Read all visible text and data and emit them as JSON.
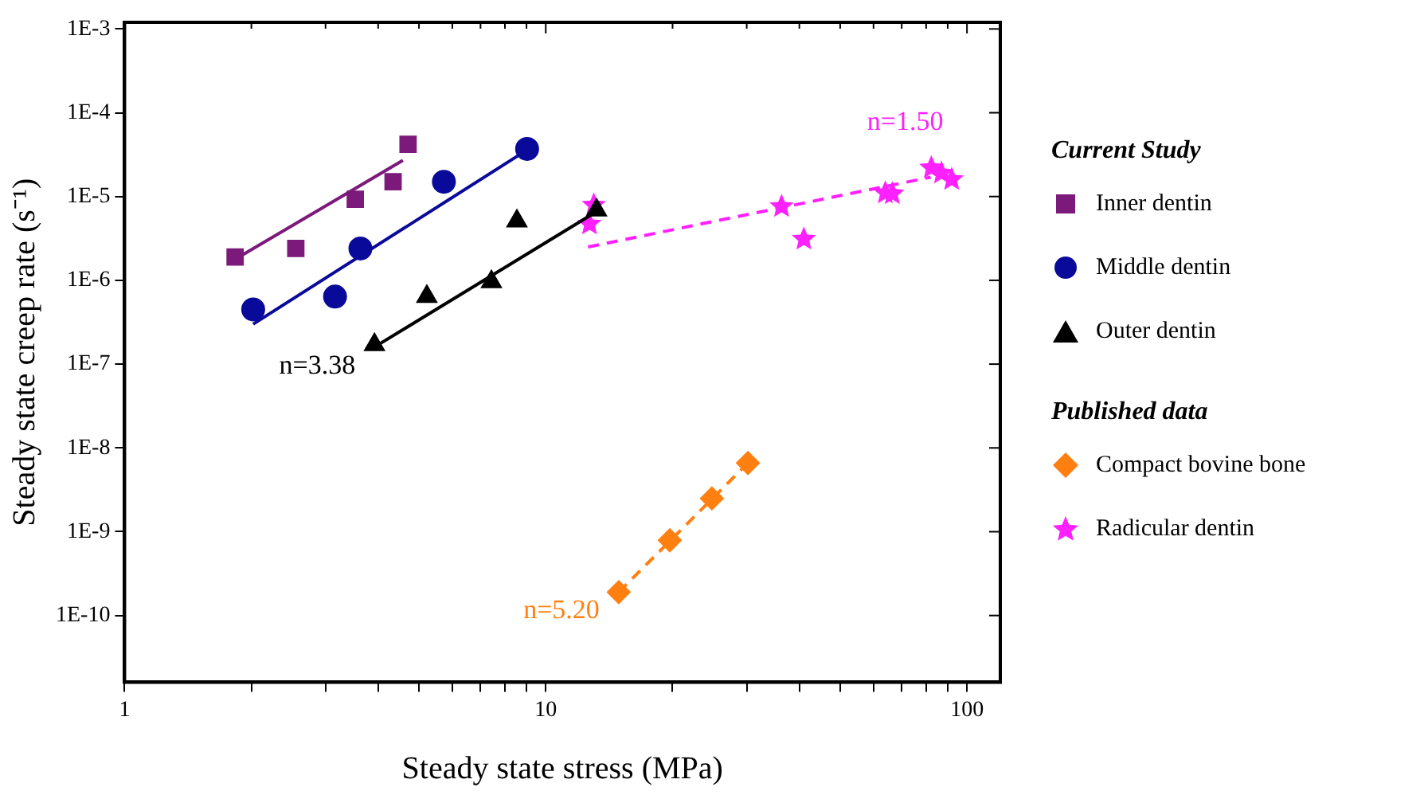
{
  "chart_data": {
    "type": "scatter",
    "xlabel": "Steady state stress (MPa)",
    "ylabel": "Steady state creep rate (s⁻¹)",
    "log": "xy",
    "xlim": [
      1,
      120
    ],
    "ylim": [
      1.6e-11,
      0.0012
    ],
    "xticks": [
      1,
      {
        "value": 2,
        "label": null
      },
      {
        "value": 3,
        "label": null
      },
      {
        "value": 4,
        "label": null
      },
      {
        "value": 5,
        "label": null
      },
      {
        "value": 6,
        "label": null
      },
      {
        "value": 7,
        "label": null
      },
      {
        "value": 8,
        "label": null
      },
      {
        "value": 9,
        "label": null
      },
      10,
      {
        "value": 20,
        "label": null
      },
      {
        "value": 30,
        "label": null
      },
      {
        "value": 40,
        "label": null
      },
      {
        "value": 50,
        "label": null
      },
      {
        "value": 60,
        "label": null
      },
      {
        "value": 70,
        "label": null
      },
      {
        "value": 80,
        "label": null
      },
      {
        "value": 90,
        "label": null
      },
      100
    ],
    "yticks": [
      {
        "value": 1e-10,
        "label": "1E-10"
      },
      {
        "value": 1e-09,
        "label": "1E-9"
      },
      {
        "value": 1e-08,
        "label": "1E-8"
      },
      {
        "value": 1e-07,
        "label": "1E-7"
      },
      {
        "value": 1e-06,
        "label": "1E-6"
      },
      {
        "value": 1e-05,
        "label": "1E-5"
      },
      {
        "value": 0.0001,
        "label": "1E-4"
      },
      {
        "value": 0.001,
        "label": "1E-3"
      }
    ],
    "grid": false,
    "legend": "right",
    "legend_title": "Current Study",
    "series": [
      {
        "name": "Inner dentin",
        "color": "#7b1a7b",
        "marker": "square",
        "x": [
          1.83,
          2.55,
          3.53,
          4.34,
          4.71
        ],
        "values": [
          1.9e-06,
          2.4e-06,
          9.3e-06,
          1.5e-05,
          4.2e-05
        ]
      },
      {
        "name": "Middle dentin",
        "color": "#0a0a9a",
        "marker": "circle",
        "x": [
          2.02,
          3.16,
          3.63,
          5.73,
          9.03
        ],
        "values": [
          4.5e-07,
          6.4e-07,
          2.4e-06,
          1.5e-05,
          3.7e-05
        ]
      },
      {
        "name": "Outer dentin",
        "color": "#000000",
        "marker": "triangle",
        "x": [
          3.92,
          5.22,
          7.43,
          8.54,
          13.2
        ],
        "values": [
          1.7e-07,
          6.4e-07,
          9.6e-07,
          5.1e-06,
          6.9e-06
        ]
      },
      {
        "name": "Compact bovine bone",
        "color": "#ff8010",
        "marker": "diamond",
        "x": [
          14.9,
          19.7,
          24.8,
          30.2
        ],
        "values": [
          1.9e-10,
          7.9e-10,
          2.5e-09,
          6.6e-09
        ]
      },
      {
        "name": "Radicular dentin",
        "color": "#ff20ff",
        "marker": "star",
        "x": [
          13.0,
          12.7,
          36.3,
          41.0,
          64.0,
          66.5,
          82.3,
          87.0,
          92.0
        ],
        "values": [
          7.9e-06,
          4.7e-06,
          7.6e-06,
          3.1e-06,
          1.1e-05,
          1.08e-05,
          2.2e-05,
          1.9e-05,
          1.6e-05
        ]
      },
      {
        "type": "line",
        "color": "#7b1a7b",
        "marker": "none",
        "line_style": "solid",
        "x": [
          1.87,
          4.58
        ],
        "values": [
          1.9e-06,
          2.7e-05
        ]
      },
      {
        "type": "line",
        "color": "#0a0a9a",
        "marker": "none",
        "line_style": "solid",
        "x": [
          2.02,
          8.7
        ],
        "values": [
          3e-07,
          3.2e-05
        ]
      },
      {
        "type": "line",
        "color": "#000000",
        "marker": "none",
        "line_style": "solid",
        "x": [
          3.92,
          13.0
        ],
        "values": [
          1.6e-07,
          6.3e-06
        ]
      },
      {
        "type": "line",
        "color": "#ff8010",
        "marker": "none",
        "line_style": "dashed",
        "x": [
          14.9,
          30.2
        ],
        "values": [
          1.9e-10,
          6.6e-09
        ]
      },
      {
        "type": "line",
        "color": "#ff20ff",
        "marker": "none",
        "line_style": "dashed",
        "x": [
          12.6,
          82
        ],
        "values": [
          2.5e-06,
          1.7e-05
        ]
      }
    ],
    "annotations": [
      {
        "text": "n=3.38",
        "x": 3.92,
        "y": 1.6e-07
      },
      {
        "text": "n=1.50",
        "x": 82,
        "y": 1.7e-05
      },
      {
        "text": "n=5.20",
        "x": 14.9,
        "y": 1.9e-10
      },
      "Published data"
    ]
  }
}
